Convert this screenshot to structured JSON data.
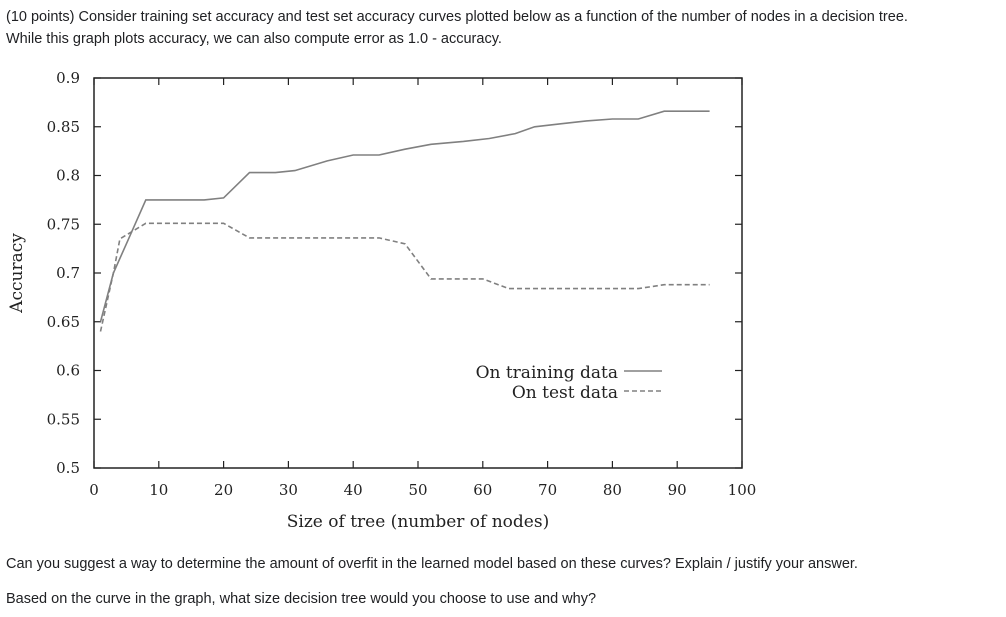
{
  "question": {
    "intro_line1": "(10 points) Consider training set accuracy and test set accuracy curves plotted below as a function of the number of nodes in a decision tree.",
    "intro_line2": "While this graph plots accuracy, we can also compute error as 1.0 - accuracy.",
    "prompt1": "Can you suggest a way to determine the amount of overfit in the learned model based on these curves? Explain / justify your answer.",
    "prompt2": "Based on the curve in the graph, what size decision tree would you choose to use and why?"
  },
  "chart_data": {
    "type": "line",
    "xlabel": "Size of tree (number of nodes)",
    "ylabel": "Accuracy",
    "xlim": [
      0,
      100
    ],
    "ylim": [
      0.5,
      0.9
    ],
    "xticks": [
      "0",
      "10",
      "20",
      "30",
      "40",
      "50",
      "60",
      "70",
      "80",
      "90",
      "100"
    ],
    "yticks": [
      "0.5",
      "0.55",
      "0.6",
      "0.65",
      "0.7",
      "0.75",
      "0.8",
      "0.85",
      "0.9"
    ],
    "grid": false,
    "legend_position": "center-right",
    "series": [
      {
        "name": "On training data",
        "style": "solid",
        "color": "#808080",
        "points": [
          [
            1,
            0.65
          ],
          [
            3,
            0.7
          ],
          [
            5,
            0.73
          ],
          [
            8,
            0.775
          ],
          [
            12,
            0.775
          ],
          [
            17,
            0.775
          ],
          [
            20,
            0.777
          ],
          [
            24,
            0.803
          ],
          [
            28,
            0.803
          ],
          [
            31,
            0.805
          ],
          [
            36,
            0.815
          ],
          [
            40,
            0.821
          ],
          [
            44,
            0.821
          ],
          [
            48,
            0.827
          ],
          [
            52,
            0.832
          ],
          [
            57,
            0.835
          ],
          [
            61,
            0.838
          ],
          [
            65,
            0.843
          ],
          [
            68,
            0.85
          ],
          [
            72,
            0.853
          ],
          [
            76,
            0.856
          ],
          [
            80,
            0.858
          ],
          [
            84,
            0.858
          ],
          [
            88,
            0.866
          ],
          [
            95,
            0.866
          ]
        ]
      },
      {
        "name": "On test data",
        "style": "dashed",
        "color": "#808080",
        "points": [
          [
            1,
            0.64
          ],
          [
            3,
            0.7
          ],
          [
            4,
            0.735
          ],
          [
            8,
            0.751
          ],
          [
            12,
            0.751
          ],
          [
            16,
            0.751
          ],
          [
            20,
            0.751
          ],
          [
            24,
            0.736
          ],
          [
            28,
            0.736
          ],
          [
            32,
            0.736
          ],
          [
            36,
            0.736
          ],
          [
            40,
            0.736
          ],
          [
            44,
            0.736
          ],
          [
            48,
            0.73
          ],
          [
            52,
            0.694
          ],
          [
            56,
            0.694
          ],
          [
            60,
            0.694
          ],
          [
            64,
            0.684
          ],
          [
            68,
            0.684
          ],
          [
            72,
            0.684
          ],
          [
            76,
            0.684
          ],
          [
            80,
            0.684
          ],
          [
            84,
            0.684
          ],
          [
            88,
            0.688
          ],
          [
            95,
            0.688
          ]
        ]
      }
    ]
  }
}
